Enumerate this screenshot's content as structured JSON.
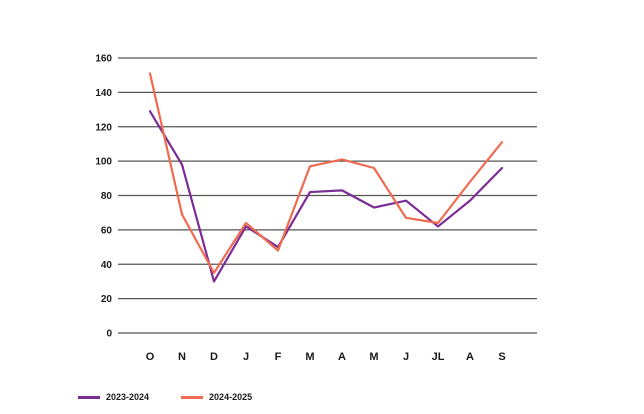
{
  "chart_data": {
    "type": "line",
    "title": "",
    "xlabel": "",
    "ylabel": "",
    "categories": [
      "O",
      "N",
      "D",
      "J",
      "F",
      "M",
      "A",
      "M",
      "J",
      "JL",
      "A",
      "S"
    ],
    "yticks": [
      0,
      20,
      40,
      60,
      80,
      100,
      120,
      140,
      160
    ],
    "ylim": [
      0,
      160
    ],
    "grid": "horizontal",
    "legend_position": "bottom-left",
    "series": [
      {
        "name": "2023-2024",
        "color": "#7b2d96",
        "values": [
          129,
          98,
          30,
          62,
          50,
          82,
          83,
          73,
          77,
          62,
          77,
          96
        ]
      },
      {
        "name": "2024-2025",
        "color": "#ef6b4f",
        "values": [
          151,
          69,
          35,
          64,
          48,
          97,
          101,
          96,
          67,
          64,
          88,
          111
        ]
      }
    ]
  }
}
